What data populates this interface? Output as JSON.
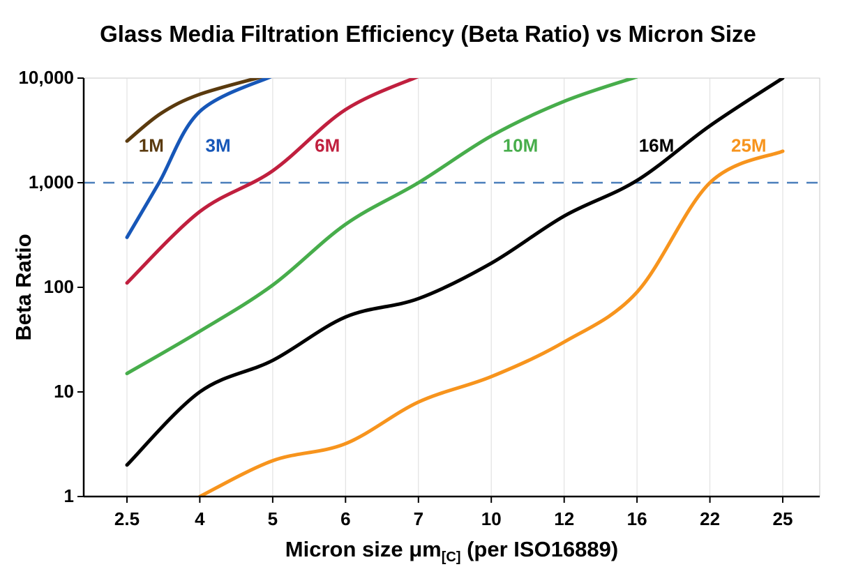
{
  "chart_data": {
    "type": "line",
    "title": "Glass Media Filtration Efficiency (Beta Ratio) vs Micron Size",
    "ylabel": "Beta Ratio",
    "xlabel": {
      "main": "Micron size μm",
      "subscript": "[C]",
      "rest": " (per ISO16889)"
    },
    "x_scale": "categorical",
    "y_scale": "log",
    "ylim": [
      1,
      10000
    ],
    "categories": [
      2.5,
      4,
      5,
      6,
      7,
      10,
      12,
      16,
      22,
      25
    ],
    "x_tick_labels": [
      "2.5",
      "4",
      "5",
      "6",
      "7",
      "10",
      "12",
      "16",
      "22",
      "25"
    ],
    "y_ticks": [
      {
        "value": 1,
        "label": "1"
      },
      {
        "value": 10,
        "label": "10"
      },
      {
        "value": 100,
        "label": "100"
      },
      {
        "value": 1000,
        "label": "1,000"
      },
      {
        "value": 10000,
        "label": "10,000"
      }
    ],
    "reference_line": {
      "value": 1000,
      "style": "dashed",
      "color": "#4a7ebb"
    },
    "grid": {
      "vertical": true,
      "horizontal": false,
      "color": "#dcdcdc",
      "frame_color": "#c8c8c8"
    },
    "axis_color": "#000000",
    "series": [
      {
        "name": "1M",
        "color": "#5a3a0e",
        "label": {
          "micron": 3.0,
          "beta": 2200
        },
        "points": [
          [
            2.5,
            2500
          ],
          [
            3.2,
            4600
          ],
          [
            4,
            7000
          ],
          [
            4.9,
            10500
          ]
        ]
      },
      {
        "name": "3M",
        "color": "#1757b8",
        "label": {
          "micron": 4.25,
          "beta": 2200
        },
        "points": [
          [
            2.5,
            300
          ],
          [
            3.16,
            1000
          ],
          [
            4,
            4800
          ],
          [
            5.0,
            10500
          ]
        ]
      },
      {
        "name": "6M",
        "color": "#c01f3e",
        "label": {
          "micron": 5.75,
          "beta": 2200
        },
        "points": [
          [
            2.5,
            110
          ],
          [
            4,
            530
          ],
          [
            5,
            1300
          ],
          [
            6,
            5000
          ],
          [
            7.05,
            10500
          ]
        ]
      },
      {
        "name": "10M",
        "color": "#47ad4b",
        "label": {
          "micron": 10.8,
          "beta": 2200
        },
        "points": [
          [
            2.5,
            15
          ],
          [
            4,
            38
          ],
          [
            5,
            105
          ],
          [
            6,
            400
          ],
          [
            7,
            1000
          ],
          [
            10,
            2800
          ],
          [
            12,
            6000
          ],
          [
            16,
            10300
          ]
        ]
      },
      {
        "name": "16M",
        "color": "#000000",
        "label": {
          "micron": 17.6,
          "beta": 2200
        },
        "points": [
          [
            2.5,
            2
          ],
          [
            4,
            10
          ],
          [
            5,
            20
          ],
          [
            6,
            52
          ],
          [
            7,
            78
          ],
          [
            10,
            170
          ],
          [
            12,
            480
          ],
          [
            16,
            1050
          ],
          [
            22,
            3500
          ],
          [
            25,
            10000
          ]
        ]
      },
      {
        "name": "25M",
        "color": "#f7941d",
        "label": {
          "micron": 23.6,
          "beta": 2200
        },
        "points": [
          [
            4,
            1
          ],
          [
            5,
            2.2
          ],
          [
            6,
            3.2
          ],
          [
            7,
            8
          ],
          [
            10,
            14
          ],
          [
            12,
            30
          ],
          [
            16,
            90
          ],
          [
            22,
            1000
          ],
          [
            25,
            2000
          ]
        ]
      }
    ]
  }
}
